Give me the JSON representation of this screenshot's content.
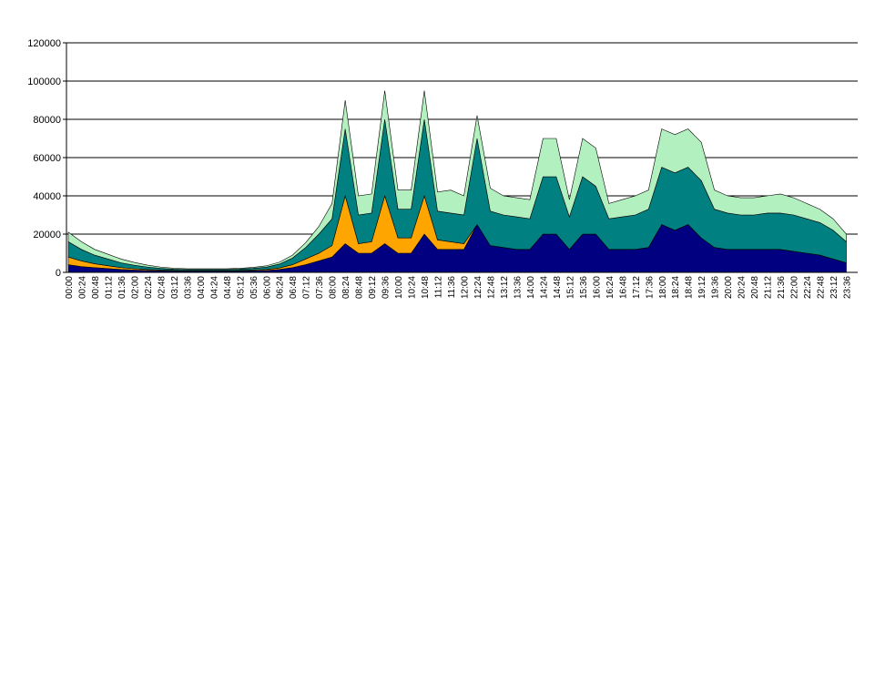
{
  "chart_data": {
    "type": "stacked-area",
    "categories": [
      "00:00",
      "00:24",
      "00:48",
      "01:12",
      "01:36",
      "02:00",
      "02:24",
      "02:48",
      "03:12",
      "03:36",
      "04:00",
      "04:24",
      "04:48",
      "05:12",
      "05:36",
      "06:00",
      "06:24",
      "06:48",
      "07:12",
      "07:36",
      "08:00",
      "08:24",
      "08:48",
      "09:12",
      "09:36",
      "10:00",
      "10:24",
      "10:48",
      "11:12",
      "11:36",
      "12:00",
      "12:24",
      "12:48",
      "13:12",
      "13:36",
      "14:00",
      "14:24",
      "14:48",
      "15:12",
      "15:36",
      "16:00",
      "16:24",
      "16:48",
      "17:12",
      "17:36",
      "18:00",
      "18:24",
      "18:48",
      "19:12",
      "19:36",
      "20:00",
      "20:24",
      "20:48",
      "21:12",
      "21:36",
      "22:00",
      "22:24",
      "22:48",
      "23:12",
      "23:36"
    ],
    "series": [
      {
        "color": "#000080",
        "values": [
          4000,
          3000,
          2500,
          2000,
          1500,
          1200,
          1000,
          800,
          700,
          600,
          600,
          600,
          600,
          700,
          800,
          1000,
          1500,
          2500,
          4000,
          6000,
          8000,
          15000,
          10000,
          10000,
          15000,
          10000,
          10000,
          20000,
          12000,
          12000,
          12000,
          25000,
          14000,
          13000,
          12000,
          12000,
          20000,
          20000,
          12000,
          20000,
          20000,
          12000,
          12000,
          12000,
          13000,
          25000,
          22000,
          25000,
          18000,
          13000,
          12000,
          12000,
          12000,
          12000,
          12000,
          11000,
          10000,
          9000,
          7000,
          5000
        ]
      },
      {
        "color": "#ffa500",
        "values": [
          4000,
          3000,
          2000,
          1500,
          1000,
          700,
          500,
          400,
          300,
          300,
          300,
          300,
          300,
          300,
          400,
          500,
          800,
          1500,
          3000,
          4000,
          6000,
          25000,
          5000,
          6000,
          25000,
          8000,
          8000,
          20000,
          5000,
          4000,
          3000,
          0,
          0,
          0,
          0,
          0,
          0,
          0,
          0,
          0,
          0,
          0,
          0,
          0,
          0,
          0,
          0,
          0,
          0,
          0,
          0,
          0,
          0,
          0,
          0,
          0,
          0,
          0,
          0,
          0
        ]
      },
      {
        "color": "#008080",
        "values": [
          8000,
          6000,
          4500,
          3500,
          2500,
          1800,
          1300,
          900,
          700,
          600,
          600,
          600,
          600,
          700,
          900,
          1200,
          2000,
          3500,
          6000,
          10000,
          14000,
          35000,
          15000,
          15000,
          40000,
          15000,
          15000,
          40000,
          15000,
          15000,
          15000,
          45000,
          18000,
          17000,
          17000,
          16000,
          30000,
          30000,
          17000,
          30000,
          25000,
          16000,
          17000,
          18000,
          20000,
          30000,
          30000,
          30000,
          30000,
          20000,
          19000,
          18000,
          18000,
          19000,
          19000,
          19000,
          18000,
          17000,
          15000,
          11000
        ]
      },
      {
        "color": "#b3f0c0",
        "values": [
          5000,
          4000,
          3000,
          2500,
          2000,
          1500,
          1000,
          700,
          500,
          400,
          400,
          400,
          400,
          400,
          500,
          700,
          1000,
          1500,
          2500,
          4000,
          8000,
          15000,
          10000,
          10000,
          15000,
          10000,
          10000,
          15000,
          10000,
          12000,
          10000,
          12000,
          12000,
          10000,
          10000,
          10000,
          20000,
          20000,
          9000,
          20000,
          20000,
          8000,
          9000,
          10000,
          10000,
          20000,
          20000,
          20000,
          20000,
          10000,
          9000,
          9000,
          9000,
          9000,
          10000,
          9000,
          8000,
          7000,
          6000,
          4000
        ]
      }
    ],
    "ylim": [
      0,
      120000
    ],
    "yticks": [
      0,
      20000,
      40000,
      60000,
      80000,
      100000,
      120000
    ],
    "grid": true
  }
}
